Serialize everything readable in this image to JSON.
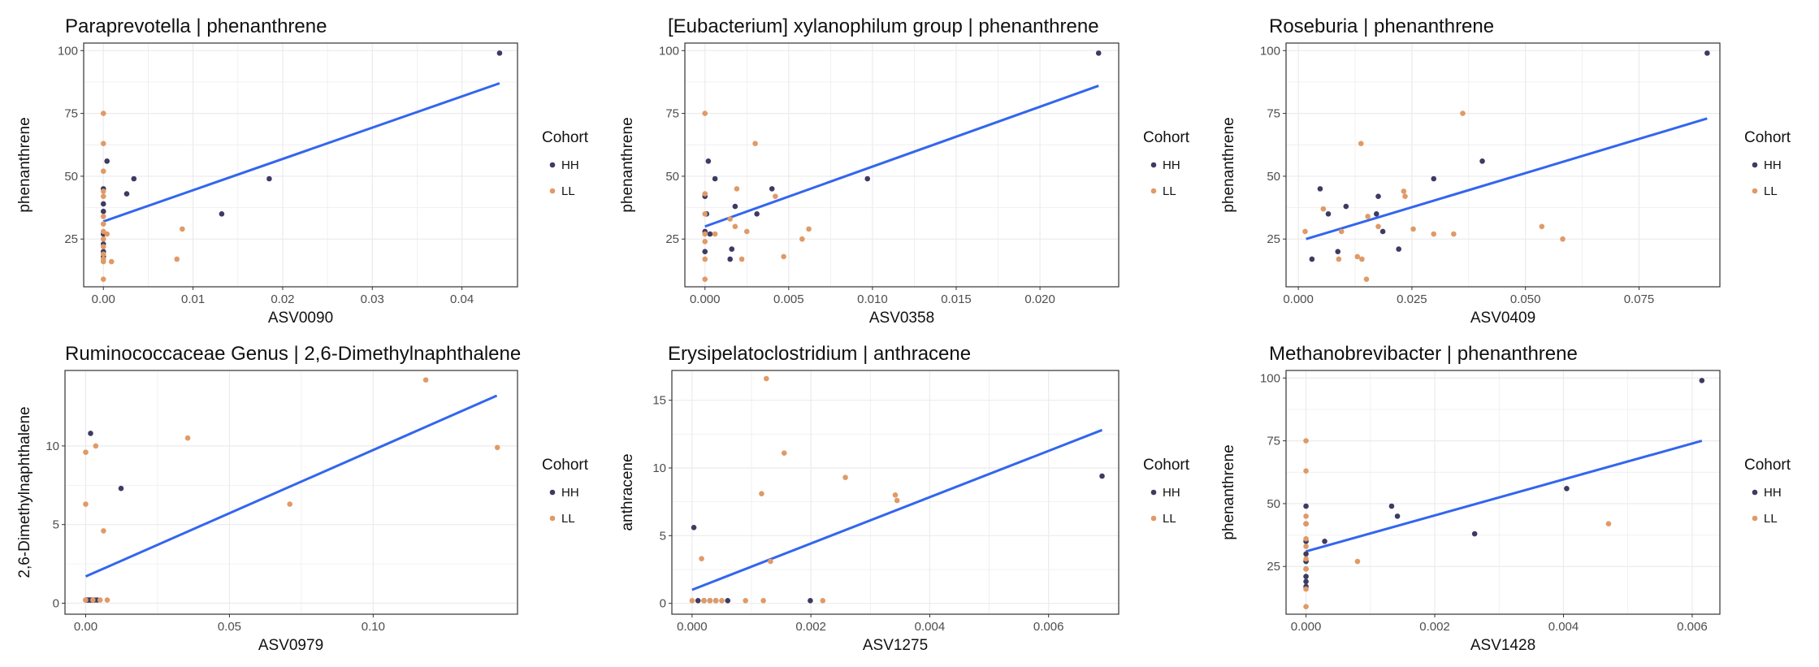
{
  "colors": {
    "HH": "#3c3b63",
    "LL": "#e09a67",
    "fit": "#3366ee",
    "grid": "#ebebeb",
    "border": "#333333"
  },
  "legend": {
    "title": "Cohort",
    "entries": [
      "HH",
      "LL"
    ]
  },
  "chart_data": [
    {
      "type": "scatter",
      "title": "Paraprevotella  |  phenanthrene",
      "xlabel": "ASV0090",
      "ylabel": "phenanthrene",
      "xlim": [
        -0.0022,
        0.0462
      ],
      "ylim": [
        6,
        103
      ],
      "xticks": [
        0,
        0.01,
        0.02,
        0.03,
        0.04
      ],
      "xtick_labels": [
        "0.00",
        "0.01",
        "0.02",
        "0.03",
        "0.04"
      ],
      "yticks": [
        25,
        50,
        75,
        100
      ],
      "ytick_labels": [
        "25",
        "50",
        "75",
        "100"
      ],
      "fit": {
        "x": [
          0,
          0.0442
        ],
        "y": [
          32,
          87
        ]
      },
      "series": [
        {
          "name": "HH",
          "points": [
            [
              0.0442,
              99
            ],
            [
              0.0185,
              49
            ],
            [
              0.0132,
              35
            ],
            [
              0.0034,
              49
            ],
            [
              0.0026,
              43
            ],
            [
              0.0004,
              56
            ],
            [
              0,
              45
            ],
            [
              0,
              39
            ],
            [
              0,
              36
            ],
            [
              0,
              27
            ],
            [
              0,
              23
            ],
            [
              0,
              20
            ],
            [
              0,
              18
            ]
          ]
        },
        {
          "name": "LL",
          "points": [
            [
              0,
              75
            ],
            [
              0,
              63
            ],
            [
              0,
              52
            ],
            [
              0,
              44
            ],
            [
              0,
              42
            ],
            [
              0,
              34
            ],
            [
              0,
              31
            ],
            [
              0,
              28
            ],
            [
              0,
              25
            ],
            [
              0,
              22
            ],
            [
              0,
              19
            ],
            [
              0,
              17
            ],
            [
              0,
              16
            ],
            [
              0,
              9
            ],
            [
              0.0004,
              27
            ],
            [
              0.0009,
              16
            ],
            [
              0.0088,
              29
            ],
            [
              0.0082,
              17
            ]
          ]
        }
      ]
    },
    {
      "type": "scatter",
      "title": "[Eubacterium] xylanophilum group  |  phenanthrene",
      "xlabel": "ASV0358",
      "ylabel": "phenanthrene",
      "xlim": [
        -0.0012,
        0.0247
      ],
      "ylim": [
        6,
        103
      ],
      "xticks": [
        0,
        0.005,
        0.01,
        0.015,
        0.02
      ],
      "xtick_labels": [
        "0.000",
        "0.005",
        "0.010",
        "0.015",
        "0.020"
      ],
      "yticks": [
        25,
        50,
        75,
        100
      ],
      "ytick_labels": [
        "25",
        "50",
        "75",
        "100"
      ],
      "fit": {
        "x": [
          0,
          0.0235
        ],
        "y": [
          30,
          86
        ]
      },
      "series": [
        {
          "name": "HH",
          "points": [
            [
              0.0235,
              99
            ],
            [
              0.0097,
              49
            ],
            [
              0.004,
              45
            ],
            [
              0.0031,
              35
            ],
            [
              0.0018,
              38
            ],
            [
              0.0016,
              21
            ],
            [
              0.0015,
              17
            ],
            [
              0.0006,
              49
            ],
            [
              0.0002,
              56
            ],
            [
              0.0003,
              27
            ],
            [
              0.0001,
              35
            ],
            [
              0,
              42
            ],
            [
              0,
              28
            ],
            [
              0,
              20
            ]
          ]
        },
        {
          "name": "LL",
          "points": [
            [
              0,
              75
            ],
            [
              0,
              43
            ],
            [
              0,
              35
            ],
            [
              0,
              27
            ],
            [
              0,
              24
            ],
            [
              0,
              17
            ],
            [
              0,
              9
            ],
            [
              0.0006,
              27
            ],
            [
              0.0015,
              33
            ],
            [
              0.0019,
              45
            ],
            [
              0.0022,
              17
            ],
            [
              0.0025,
              28
            ],
            [
              0.003,
              63
            ],
            [
              0.0042,
              42
            ],
            [
              0.0047,
              18
            ],
            [
              0.0058,
              25
            ],
            [
              0.0062,
              29
            ],
            [
              0.0018,
              30
            ]
          ]
        }
      ]
    },
    {
      "type": "scatter",
      "title": "Roseburia  |  phenanthrene",
      "xlabel": "ASV0409",
      "ylabel": "phenanthrene",
      "xlim": [
        -0.0027,
        0.0928
      ],
      "ylim": [
        6,
        103
      ],
      "xticks": [
        0,
        0.025,
        0.05,
        0.075
      ],
      "xtick_labels": [
        "0.000",
        "0.025",
        "0.050",
        "0.075"
      ],
      "yticks": [
        25,
        50,
        75,
        100
      ],
      "ytick_labels": [
        "25",
        "50",
        "75",
        "100"
      ],
      "fit": {
        "x": [
          0.0017,
          0.09
        ],
        "y": [
          25,
          73
        ]
      },
      "series": [
        {
          "name": "HH",
          "points": [
            [
              0.09,
              99
            ],
            [
              0.0405,
              56
            ],
            [
              0.0298,
              49
            ],
            [
              0.0221,
              21
            ],
            [
              0.0186,
              28
            ],
            [
              0.0176,
              42
            ],
            [
              0.0172,
              35
            ],
            [
              0.0105,
              38
            ],
            [
              0.0087,
              20
            ],
            [
              0.0066,
              35
            ],
            [
              0.0048,
              45
            ],
            [
              0.003,
              17
            ]
          ]
        },
        {
          "name": "LL",
          "points": [
            [
              0.0015,
              28
            ],
            [
              0.0055,
              37
            ],
            [
              0.0089,
              17
            ],
            [
              0.0095,
              28
            ],
            [
              0.013,
              18
            ],
            [
              0.014,
              17
            ],
            [
              0.0138,
              63
            ],
            [
              0.015,
              9
            ],
            [
              0.0153,
              34
            ],
            [
              0.0176,
              30
            ],
            [
              0.0232,
              44
            ],
            [
              0.0235,
              42
            ],
            [
              0.0253,
              29
            ],
            [
              0.0298,
              27
            ],
            [
              0.0342,
              27
            ],
            [
              0.0362,
              75
            ],
            [
              0.0536,
              30
            ],
            [
              0.0582,
              25
            ]
          ]
        }
      ]
    },
    {
      "type": "scatter",
      "title": "Ruminococcaceae Genus  |  2,6-Dimethylnaphthalene",
      "xlabel": "ASV0979",
      "ylabel": "2,6-Dimethylnaphthalene",
      "xlim": [
        -0.0072,
        0.1502
      ],
      "ylim": [
        -0.7,
        14.8
      ],
      "xticks": [
        0,
        0.05,
        0.1
      ],
      "xtick_labels": [
        "0.00",
        "0.05",
        "0.10"
      ],
      "yticks": [
        0,
        5,
        10
      ],
      "ytick_labels": [
        "0",
        "5",
        "10"
      ],
      "fit": {
        "x": [
          0,
          0.143
        ],
        "y": [
          1.7,
          13.2
        ]
      },
      "series": [
        {
          "name": "HH",
          "points": [
            [
              0.0017,
              10.8
            ],
            [
              0.0123,
              7.3
            ],
            [
              0,
              0.2
            ],
            [
              0.0005,
              0.2
            ],
            [
              0.001,
              0.2
            ],
            [
              0.0015,
              0.2
            ],
            [
              0.002,
              0.2
            ],
            [
              0.003,
              0.2
            ],
            [
              0.004,
              0.2
            ]
          ]
        },
        {
          "name": "LL",
          "points": [
            [
              0,
              9.6
            ],
            [
              0.0035,
              10
            ],
            [
              0,
              6.3
            ],
            [
              0.0062,
              4.6
            ],
            [
              0.0355,
              10.5
            ],
            [
              0.071,
              6.3
            ],
            [
              0.1183,
              14.2
            ],
            [
              0.1432,
              9.9
            ],
            [
              0,
              0.2
            ],
            [
              0.0025,
              0.2
            ],
            [
              0.005,
              0.2
            ],
            [
              0.0075,
              0.2
            ]
          ]
        }
      ]
    },
    {
      "type": "scatter",
      "title": "Erysipelatoclostridium  |  anthracene",
      "xlabel": "ASV1275",
      "ylabel": "anthracene",
      "xlim": [
        -0.00034,
        0.00718
      ],
      "ylim": [
        -0.8,
        17.2
      ],
      "xticks": [
        0,
        0.002,
        0.004,
        0.006
      ],
      "xtick_labels": [
        "0.000",
        "0.002",
        "0.004",
        "0.006"
      ],
      "yticks": [
        0,
        5,
        10,
        15
      ],
      "ytick_labels": [
        "0",
        "5",
        "10",
        "15"
      ],
      "fit": {
        "x": [
          0,
          0.0069
        ],
        "y": [
          1,
          12.8
        ]
      },
      "series": [
        {
          "name": "HH",
          "points": [
            [
              0.0069,
              9.4
            ],
            [
              3e-05,
              5.6
            ],
            [
              0.00199,
              0.2
            ],
            [
              0.0001,
              0.2
            ],
            [
              0.0002,
              0.2
            ],
            [
              0.0003,
              0.2
            ],
            [
              0.0004,
              0.2
            ],
            [
              0.0006,
              0.2
            ]
          ]
        },
        {
          "name": "LL",
          "points": [
            [
              0.00125,
              16.6
            ],
            [
              0.00155,
              11.1
            ],
            [
              0.00258,
              9.3
            ],
            [
              0.00342,
              8
            ],
            [
              0.00345,
              7.6
            ],
            [
              0.00117,
              8.1
            ],
            [
              0.00016,
              3.3
            ],
            [
              0.00132,
              3.1
            ],
            [
              0,
              0.2
            ],
            [
              0.0002,
              0.2
            ],
            [
              0.0003,
              0.2
            ],
            [
              0.0004,
              0.2
            ],
            [
              0.0005,
              0.2
            ],
            [
              0.0009,
              0.2
            ],
            [
              0.0012,
              0.2
            ],
            [
              0.0022,
              0.2
            ]
          ]
        }
      ]
    },
    {
      "type": "scatter",
      "title": "Methanobrevibacter  |  phenanthrene",
      "xlabel": "ASV1428",
      "ylabel": "phenanthrene",
      "xlim": [
        -0.00031,
        0.00643
      ],
      "ylim": [
        6,
        103
      ],
      "xticks": [
        0,
        0.002,
        0.004,
        0.006
      ],
      "xtick_labels": [
        "0.000",
        "0.002",
        "0.004",
        "0.006"
      ],
      "yticks": [
        25,
        50,
        75,
        100
      ],
      "ytick_labels": [
        "25",
        "50",
        "75",
        "100"
      ],
      "fit": {
        "x": [
          0,
          0.00615
        ],
        "y": [
          31,
          75
        ]
      },
      "series": [
        {
          "name": "HH",
          "points": [
            [
              0.00615,
              99
            ],
            [
              0.00405,
              56
            ],
            [
              0.00262,
              38
            ],
            [
              0.00142,
              45
            ],
            [
              0.00133,
              49
            ],
            [
              0.00029,
              35
            ],
            [
              0,
              49
            ],
            [
              0,
              42
            ],
            [
              0,
              35
            ],
            [
              0,
              30
            ],
            [
              0,
              27
            ],
            [
              0,
              24
            ],
            [
              0,
              21
            ],
            [
              0,
              19
            ],
            [
              0,
              17
            ]
          ]
        },
        {
          "name": "LL",
          "points": [
            [
              0,
              75
            ],
            [
              0,
              63
            ],
            [
              0,
              45
            ],
            [
              0,
              42
            ],
            [
              0,
              36
            ],
            [
              0,
              33
            ],
            [
              0,
              28
            ],
            [
              0,
              24
            ],
            [
              0,
              16
            ],
            [
              0,
              9
            ],
            [
              0.0008,
              27
            ],
            [
              0.0047,
              42
            ]
          ]
        }
      ]
    }
  ]
}
